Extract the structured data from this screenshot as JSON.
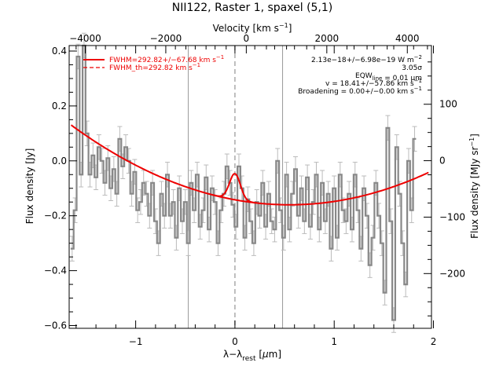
{
  "chart_data": {
    "type": "line",
    "title": "NII122, Raster 1, spaxel (5,1)",
    "xlabel": "λ−λ",
    "xlabel_sub": "rest",
    "xlabel_unit_prefix": " [",
    "xlabel_unit_mu": "μ",
    "xlabel_unit_suffix": "m]",
    "ylabel": "Flux density [Jy]",
    "top_xlabel_prefix": "Velocity [km s",
    "top_xlabel_sup": "−1",
    "top_xlabel_suffix": "]",
    "right_ylabel_prefix": "Flux density [MJy sr",
    "right_ylabel_sup": "−1",
    "right_ylabel_suffix": "]",
    "xlim": [
      -1.67,
      1.98
    ],
    "ylim": [
      -0.61,
      0.42
    ],
    "top_xlim": [
      -4400,
      4600
    ],
    "right_ylim": [
      -297,
      204
    ],
    "x_ticks": [
      {
        "v": -1,
        "label": "−1"
      },
      {
        "v": 0,
        "label": "0"
      },
      {
        "v": 1,
        "label": "1"
      },
      {
        "v": 2,
        "label": "2"
      }
    ],
    "y_ticks": [
      {
        "v": 0.4,
        "label": "0.4"
      },
      {
        "v": 0.2,
        "label": "0.2"
      },
      {
        "v": 0.0,
        "label": "0.0"
      },
      {
        "v": -0.2,
        "label": "−0.2"
      },
      {
        "v": -0.4,
        "label": "−0.4"
      },
      {
        "v": -0.6,
        "label": "−0.6"
      }
    ],
    "top_ticks": [
      {
        "v": -4000,
        "label": "−4000"
      },
      {
        "v": -2000,
        "label": "−2000"
      },
      {
        "v": 0,
        "label": "0"
      },
      {
        "v": 2000,
        "label": "2000"
      },
      {
        "v": 4000,
        "label": "4000"
      }
    ],
    "right_ticks": [
      {
        "v": 100,
        "label": "100"
      },
      {
        "v": 0,
        "label": "0"
      },
      {
        "v": -100,
        "label": "−100"
      },
      {
        "v": -200,
        "label": "−200"
      }
    ],
    "vlines_solid": [
      -0.47,
      0.48
    ],
    "vline_dashed": 0.0,
    "continuum": {
      "x_start": -1.65,
      "x_end": 1.95,
      "vertex_x": 0.55,
      "vertex_y": -0.16,
      "a": 0.06
    },
    "gaussian": {
      "center": 0.0,
      "amplitude": 0.095,
      "sigma": 0.055
    },
    "data_series": {
      "name": "data",
      "x": [
        -1.64,
        -1.61,
        -1.58,
        -1.55,
        -1.52,
        -1.49,
        -1.46,
        -1.43,
        -1.4,
        -1.37,
        -1.34,
        -1.31,
        -1.28,
        -1.25,
        -1.22,
        -1.19,
        -1.16,
        -1.13,
        -1.1,
        -1.07,
        -1.04,
        -1.01,
        -0.98,
        -0.95,
        -0.92,
        -0.89,
        -0.86,
        -0.83,
        -0.8,
        -0.77,
        -0.74,
        -0.71,
        -0.68,
        -0.65,
        -0.62,
        -0.59,
        -0.56,
        -0.53,
        -0.5,
        -0.47,
        -0.44,
        -0.41,
        -0.38,
        -0.35,
        -0.32,
        -0.29,
        -0.26,
        -0.23,
        -0.2,
        -0.17,
        -0.14,
        -0.11,
        -0.08,
        -0.05,
        -0.02,
        0.01,
        0.04,
        0.07,
        0.1,
        0.13,
        0.16,
        0.19,
        0.22,
        0.25,
        0.28,
        0.31,
        0.34,
        0.37,
        0.4,
        0.43,
        0.46,
        0.49,
        0.52,
        0.55,
        0.58,
        0.61,
        0.64,
        0.67,
        0.7,
        0.73,
        0.76,
        0.79,
        0.82,
        0.85,
        0.88,
        0.91,
        0.94,
        0.97,
        1.0,
        1.03,
        1.06,
        1.09,
        1.12,
        1.15,
        1.18,
        1.21,
        1.24,
        1.27,
        1.3,
        1.33,
        1.36,
        1.39,
        1.42,
        1.45,
        1.48,
        1.51,
        1.54,
        1.57,
        1.6,
        1.63,
        1.66,
        1.69,
        1.72,
        1.75,
        1.78,
        1.81
      ],
      "y": [
        -0.32,
        -0.18,
        0.38,
        -0.05,
        0.42,
        0.1,
        -0.05,
        0.02,
        -0.06,
        0.05,
        0.0,
        -0.08,
        0.01,
        -0.1,
        -0.03,
        -0.12,
        0.08,
        -0.02,
        0.05,
        0.0,
        -0.12,
        -0.04,
        -0.18,
        -0.15,
        -0.08,
        -0.12,
        -0.2,
        -0.08,
        -0.22,
        -0.3,
        -0.12,
        -0.2,
        -0.05,
        -0.2,
        -0.15,
        -0.28,
        -0.1,
        -0.22,
        -0.15,
        -0.3,
        -0.08,
        -0.18,
        -0.05,
        -0.24,
        -0.18,
        -0.06,
        -0.25,
        -0.1,
        -0.15,
        -0.3,
        -0.18,
        -0.12,
        -0.02,
        -0.08,
        -0.16,
        -0.24,
        -0.02,
        -0.1,
        -0.28,
        -0.14,
        -0.22,
        -0.3,
        -0.15,
        -0.2,
        -0.08,
        -0.24,
        -0.12,
        -0.22,
        -0.25,
        0.0,
        -0.18,
        -0.28,
        -0.05,
        -0.25,
        -0.12,
        -0.03,
        -0.2,
        -0.1,
        -0.22,
        -0.06,
        -0.24,
        -0.15,
        -0.05,
        -0.25,
        -0.08,
        -0.22,
        -0.12,
        -0.32,
        -0.1,
        -0.28,
        -0.05,
        -0.18,
        -0.22,
        -0.12,
        -0.25,
        -0.05,
        -0.18,
        -0.32,
        -0.1,
        -0.2,
        -0.38,
        -0.28,
        -0.08,
        -0.2,
        -0.3,
        -0.48,
        0.12,
        -0.22,
        -0.58,
        0.05,
        -0.12,
        -0.3,
        -0.45,
        0.0,
        -0.18,
        0.08
      ],
      "error": 0.045
    },
    "legend": [
      {
        "label": "FWHM=292.82+/−67.68 km s",
        "sup": "−1",
        "color": "#ee0000",
        "style": "solid"
      },
      {
        "label": "FWHM_th=292.82 km s",
        "sup": "−1",
        "color": "#ee0000",
        "style": "dashed"
      }
    ],
    "legend_position": "top-left",
    "annotations": [
      {
        "parts": [
          {
            "t": "2.13e−18+/−6.98e−19 W m"
          },
          {
            "t": "−2",
            "sup": true
          }
        ]
      },
      {
        "parts": [
          {
            "t": "3.05σ"
          }
        ]
      },
      {
        "parts": [
          {
            "t": "EQW"
          },
          {
            "t": "line",
            "sub": true
          },
          {
            "t": " = 0.01 μm"
          }
        ]
      },
      {
        "parts": [
          {
            "t": "v = 18.41+/−57.86 km s"
          },
          {
            "t": "−1",
            "sup": true
          }
        ]
      },
      {
        "parts": [
          {
            "t": "Broadening = 0.00+/−0.00 km s"
          },
          {
            "t": "−1",
            "sup": true
          }
        ]
      }
    ],
    "colors": {
      "data": "#888888",
      "error": "#bbbbbb",
      "fit": "#ee0000",
      "vline": "#999999",
      "vline_dashed": "#aaaaaa",
      "axes": "#000000"
    },
    "grid": false
  }
}
